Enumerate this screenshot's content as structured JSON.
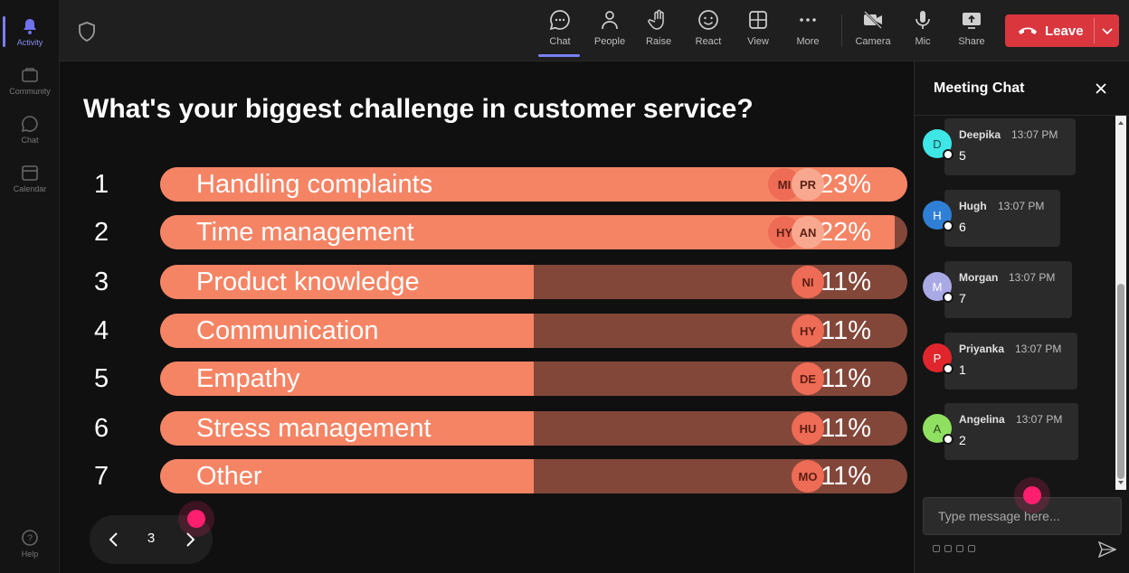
{
  "rail": {
    "items": [
      {
        "label": "Activity",
        "icon": "bell-icon",
        "active": true
      },
      {
        "label": "Community",
        "icon": "community-icon",
        "active": false
      },
      {
        "label": "Chat",
        "icon": "chat-icon",
        "active": false
      },
      {
        "label": "Calendar",
        "icon": "calendar-icon",
        "active": false
      }
    ],
    "help_label": "Help"
  },
  "toolbar": {
    "buttons": [
      {
        "label": "Chat",
        "icon": "chat-icon",
        "active": true
      },
      {
        "label": "People",
        "icon": "people-icon",
        "active": false
      },
      {
        "label": "Raise",
        "icon": "raise-hand-icon",
        "active": false
      },
      {
        "label": "React",
        "icon": "react-icon",
        "active": false
      },
      {
        "label": "View",
        "icon": "view-grid-icon",
        "active": false
      },
      {
        "label": "More",
        "icon": "more-icon",
        "active": false
      },
      {
        "label": "Camera",
        "icon": "camera-off-icon",
        "active": false
      },
      {
        "label": "Mic",
        "icon": "mic-icon",
        "active": false
      },
      {
        "label": "Share",
        "icon": "share-icon",
        "active": false
      }
    ],
    "leave_label": "Leave"
  },
  "poll": {
    "title": "What's your biggest challenge in customer service?",
    "options": [
      {
        "number": "1",
        "label": "Handling complaints",
        "percent": 23,
        "percent_label": "23%",
        "voters": [
          "MI",
          "PR"
        ]
      },
      {
        "number": "2",
        "label": "Time management",
        "percent": 22,
        "percent_label": "22%",
        "voters": [
          "HY",
          "AN"
        ]
      },
      {
        "number": "3",
        "label": "Product knowledge",
        "percent": 11,
        "percent_label": "11%",
        "voters": [
          "NI"
        ]
      },
      {
        "number": "4",
        "label": "Communication",
        "percent": 11,
        "percent_label": "11%",
        "voters": [
          "HY"
        ]
      },
      {
        "number": "5",
        "label": "Empathy",
        "percent": 11,
        "percent_label": "11%",
        "voters": [
          "DE"
        ]
      },
      {
        "number": "6",
        "label": "Stress management",
        "percent": 11,
        "percent_label": "11%",
        "voters": [
          "HU"
        ]
      },
      {
        "number": "7",
        "label": "Other",
        "percent": 11,
        "percent_label": "11%",
        "voters": [
          "MO"
        ]
      }
    ],
    "colors": {
      "fill": "#f58465",
      "track": "#83473a"
    }
  },
  "pager": {
    "page": "3"
  },
  "chat": {
    "title": "Meeting Chat",
    "messages": [
      {
        "initial": "D",
        "name": "Deepika",
        "time": "13:07 PM",
        "text": "5",
        "color": "#3ee6e6",
        "text_color": "#1a4a4a"
      },
      {
        "initial": "H",
        "name": "Hugh",
        "time": "13:07 PM",
        "text": "6",
        "color": "#2f7fd6",
        "text_color": "#ffffff"
      },
      {
        "initial": "M",
        "name": "Morgan",
        "time": "13:07 PM",
        "text": "7",
        "color": "#a9a9e6",
        "text_color": "#ffffff"
      },
      {
        "initial": "P",
        "name": "Priyanka",
        "time": "13:07 PM",
        "text": "1",
        "color": "#e0262c",
        "text_color": "#ffffff"
      },
      {
        "initial": "A",
        "name": "Angelina",
        "time": "13:07 PM",
        "text": "2",
        "color": "#8fe060",
        "text_color": "#2c4a1a"
      }
    ],
    "compose_placeholder": "Type message here..."
  }
}
